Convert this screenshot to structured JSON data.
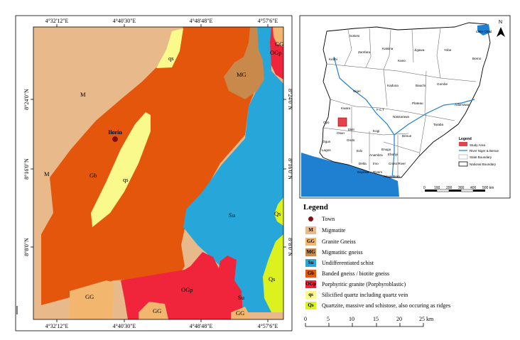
{
  "main_map": {
    "top_coords": [
      "4°32'12\"E",
      "4°40'30\"E",
      "4°48'48\"E",
      "4°57'6\"E"
    ],
    "bottom_coords": [
      "4°32'12\"E",
      "4°40'30\"E",
      "4°48'48\"E",
      "4°57'6\"E"
    ],
    "left_coords": [
      "8°24'0\"N",
      "8°16'0\"N",
      "8°8'0\"N"
    ],
    "right_coords": [
      "8°24'0\"N",
      "8°16'0\"N",
      "8°8'0\"N"
    ],
    "town_label": "Ilorin",
    "unit_labels": {
      "m1": "M",
      "m2": "M",
      "gb": "Gb",
      "qs1": "qs",
      "qs2": "qs",
      "mg": "MG",
      "ogp_top": "OGp",
      "gg_top": "GG",
      "su1": "Su",
      "su2": "Su",
      "qs_big1": "Qs",
      "qs_big2": "Qs",
      "gg_bl": "GG",
      "gg_bm": "GG",
      "gg_br": "GG",
      "ogp_bottom": "OGp"
    }
  },
  "inset_map": {
    "north": "N",
    "states": [
      "Sokoto",
      "Zamfara",
      "Katsina",
      "Kano",
      "Jigawa",
      "Yobe",
      "Borno",
      "Kebbi",
      "Niger",
      "Kaduna",
      "Bauchi",
      "Gombe",
      "Kwara",
      "Plateau",
      "F.C.T",
      "Nassarawa",
      "Adamawa",
      "Taraba",
      "Oyo",
      "Osun",
      "Ekiti",
      "Kogi",
      "Ondo",
      "Benue",
      "Ogun",
      "Edo",
      "Lagos",
      "Enugu",
      "Anambra",
      "Ebonyi",
      "Delta",
      "Imo",
      "Cross River",
      "Bayelsa",
      "Rivers",
      "Akwa Ibom",
      "Lake Chad"
    ],
    "legend_title": "Legend",
    "legend_items": [
      "Study Area",
      "River Niger & Benue",
      "State Boundary",
      "National Boundary"
    ],
    "scale_labels": [
      "0",
      "100",
      "200",
      "300",
      "400",
      "500 km"
    ]
  },
  "legend": {
    "title": "Legend",
    "items": [
      {
        "code": "",
        "label": "Town",
        "color": "#8b0d0d"
      },
      {
        "code": "M",
        "label": "Migmatite",
        "color": "#e8b98a"
      },
      {
        "code": "GG",
        "label": "Granite Gneiss",
        "color": "#f2b66e"
      },
      {
        "code": "MG",
        "label": "Migmatitic gneiss",
        "color": "#c8894a"
      },
      {
        "code": "Su",
        "label": "Undifferentiated schist",
        "color": "#26a6d9"
      },
      {
        "code": "Gb",
        "label": "Banded gneiss / biotite gneiss",
        "color": "#e4560c"
      },
      {
        "code": "OGp",
        "label": "Porphyritic granite (Porphyroblastic)",
        "color": "#f0253b"
      },
      {
        "code": "qs",
        "label": "Silicified quartz including quartz vein",
        "color": "#fafa8c"
      },
      {
        "code": "Qs",
        "label": "Quartzite, massive and schistose, also occuring as ridges",
        "color": "#dcf21e"
      }
    ]
  },
  "scale_bar": {
    "labels": [
      "0",
      "5",
      "10",
      "15",
      "20",
      "25 km"
    ]
  }
}
